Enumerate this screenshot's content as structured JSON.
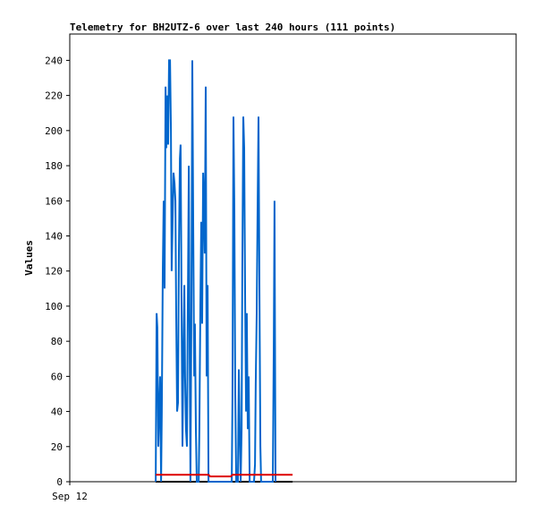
{
  "chart_data": {
    "type": "line",
    "title": "Telemetry for BH2UTZ-6 over last 240 hours (111 points)",
    "ylabel": "Values",
    "xlim": [
      0,
      240
    ],
    "xticks": [
      {
        "value": 0,
        "label": "Sep 12"
      }
    ],
    "ylim": [
      0,
      255
    ],
    "yticks": [
      0,
      20,
      40,
      60,
      80,
      100,
      120,
      140,
      160,
      180,
      200,
      220,
      240
    ],
    "series": [
      {
        "color": "#000000",
        "x": [
          46.2,
          119.8
        ],
        "values": [
          0,
          0
        ]
      },
      {
        "color": "#0066cc",
        "x": [
          46.2,
          46.7,
          47.1,
          47.6,
          48.6,
          49.1,
          49.5,
          50.0,
          50.5,
          51.0,
          51.5,
          51.9,
          52.4,
          52.9,
          53.4,
          53.9,
          54.4,
          54.8,
          55.3,
          55.8,
          56.3,
          56.8,
          57.2,
          57.7,
          58.2,
          58.7,
          59.2,
          59.6,
          60.1,
          60.6,
          61.1,
          61.6,
          62.0,
          62.5,
          63.0,
          63.5,
          64.0,
          64.5,
          64.9,
          65.4,
          65.9,
          66.4,
          66.9,
          67.3,
          67.8,
          68.3,
          69.3,
          69.7,
          70.2,
          70.7,
          71.2,
          71.7,
          72.1,
          72.6,
          73.1,
          73.6,
          74.1,
          74.6,
          87.1,
          87.5,
          88.0,
          88.5,
          89.0,
          89.5,
          90.4,
          90.9,
          91.4,
          91.9,
          92.4,
          92.8,
          93.3,
          93.8,
          94.3,
          94.8,
          95.2,
          95.7,
          96.2,
          96.7,
          97.6,
          99.1,
          99.6,
          100.0,
          100.5,
          101.0,
          101.5,
          102.0,
          102.5,
          102.9,
          109.2,
          109.7,
          110.1,
          110.6
        ],
        "values": [
          0,
          96,
          88,
          20,
          60,
          0,
          40,
          120,
          160,
          110,
          225,
          190,
          220,
          192,
          240,
          240,
          200,
          120,
          150,
          176,
          170,
          160,
          100,
          40,
          45,
          130,
          184,
          192,
          100,
          20,
          70,
          112,
          60,
          30,
          20,
          100,
          180,
          70,
          0,
          100,
          240,
          140,
          60,
          90,
          30,
          0,
          0,
          30,
          100,
          148,
          90,
          176,
          160,
          130,
          225,
          60,
          112,
          0,
          0,
          48,
          208,
          156,
          50,
          0,
          0,
          64,
          30,
          0,
          30,
          120,
          208,
          190,
          100,
          40,
          96,
          30,
          60,
          0,
          0,
          0,
          10,
          56,
          96,
          156,
          208,
          104,
          20,
          0,
          0,
          80,
          160,
          0
        ]
      },
      {
        "color": "#dd0000",
        "x": [
          46.2,
          74.6,
          75.5,
          86.6,
          87.5,
          119.8
        ],
        "values": [
          4,
          4,
          3,
          3,
          4,
          4
        ]
      }
    ]
  }
}
